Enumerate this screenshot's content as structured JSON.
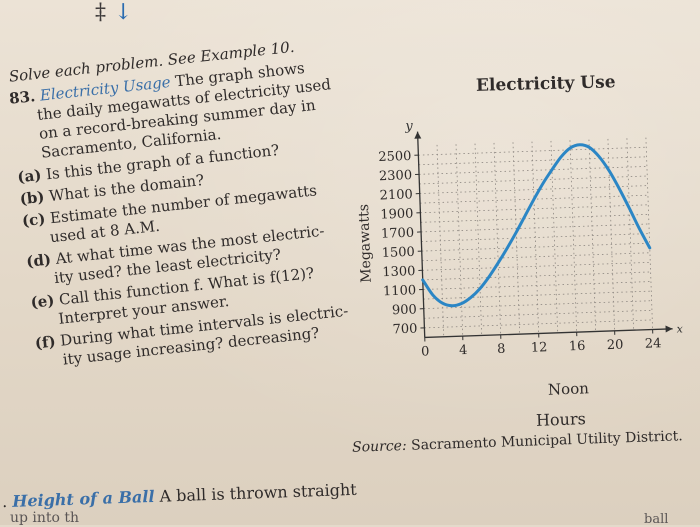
{
  "top_marks": {
    "dagger": "‡",
    "arrow": "↓"
  },
  "problem": {
    "instruction": "Solve each problem. See Example 10.",
    "number": "83.",
    "title": "Electricity Usage",
    "stem_lines": [
      "The graph shows",
      "the daily megawatts of electricity used",
      "on a record-breaking summer day in",
      "Sacramento, California."
    ],
    "parts": [
      {
        "label": "(a)",
        "lines": [
          "Is this the graph of a function?"
        ]
      },
      {
        "label": "(b)",
        "lines": [
          "What is the domain?"
        ]
      },
      {
        "label": "(c)",
        "lines": [
          "Estimate the number of megawatts",
          "used at 8 A.M."
        ]
      },
      {
        "label": "(d)",
        "lines": [
          "At what time was the most electric-",
          "ity used? the least electricity?"
        ]
      },
      {
        "label": "(e)",
        "lines": [
          "Call this function f. What is f(12)?",
          "Interpret your answer."
        ]
      },
      {
        "label": "(f)",
        "lines": [
          "During what time intervals is electric-",
          "ity usage increasing? decreasing?"
        ]
      }
    ]
  },
  "chart_data": {
    "type": "line",
    "title": "Electricity Use",
    "xlabel": "Hours",
    "ylabel": "Megawatts",
    "y_axis_letter": "y",
    "x_axis_letter": "x",
    "x_ticks": [
      0,
      4,
      8,
      12,
      16,
      20,
      24
    ],
    "x_tick_labels": [
      "0",
      "4",
      "8",
      "12",
      "16",
      "20",
      "24"
    ],
    "x_note": "Noon",
    "y_ticks": [
      700,
      900,
      1100,
      1300,
      1500,
      1700,
      1900,
      2100,
      2300,
      2500
    ],
    "y_tick_labels": [
      "700",
      "900",
      "1100",
      "1300",
      "1500",
      "1700",
      "1900",
      "2100",
      "2300",
      "2500"
    ],
    "xlim": [
      0,
      24
    ],
    "ylim": [
      600,
      2600
    ],
    "grid": true,
    "series": [
      {
        "color": "#2b86c5",
        "x": [
          0,
          1,
          2,
          3,
          4,
          5,
          6,
          7,
          8,
          9,
          10,
          11,
          12,
          13,
          14,
          15,
          16,
          17,
          18,
          19,
          20,
          21,
          22,
          23,
          24
        ],
        "y": [
          1200,
          1040,
          950,
          920,
          940,
          1000,
          1090,
          1210,
          1350,
          1500,
          1660,
          1830,
          2000,
          2160,
          2300,
          2430,
          2520,
          2550,
          2520,
          2420,
          2270,
          2080,
          1870,
          1650,
          1450
        ]
      }
    ]
  },
  "source": {
    "label": "Source:",
    "text": "Sacramento Municipal Utility District."
  },
  "next_problem": {
    "bullet": ".",
    "title": "Height of a Ball",
    "text": "A ball is thrown straight",
    "tail": "up into th",
    "right_tail": "ball"
  }
}
